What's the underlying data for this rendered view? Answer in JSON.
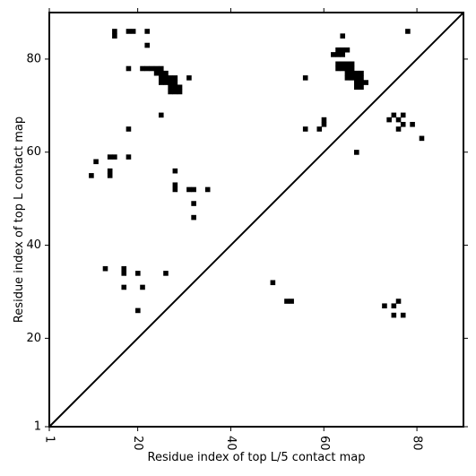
{
  "chart_data": {
    "type": "scatter",
    "xlabel": "Residue index of top L/5 contact map",
    "ylabel": "Residue index of top L contact map",
    "xlim": [
      1,
      90
    ],
    "ylim": [
      1,
      90
    ],
    "xticks": [
      1,
      20,
      40,
      60,
      80
    ],
    "yticks": [
      1,
      20,
      40,
      60,
      80
    ],
    "xtick_label_rotation": -90,
    "marker": "square",
    "marker_color": "#000000",
    "diagonal_line": true,
    "grid": false,
    "legend": "none",
    "series": [
      {
        "region": "upper-left (top L contacts)",
        "points": [
          [
            15,
            85
          ],
          [
            15,
            86
          ],
          [
            18,
            86
          ],
          [
            19,
            86
          ],
          [
            22,
            86
          ],
          [
            22,
            83
          ],
          [
            18,
            78
          ],
          [
            21,
            78
          ],
          [
            22,
            78
          ],
          [
            23,
            78
          ],
          [
            24,
            78
          ],
          [
            25,
            78
          ],
          [
            24,
            77
          ],
          [
            25,
            77
          ],
          [
            26,
            77
          ],
          [
            25,
            76
          ],
          [
            26,
            76
          ],
          [
            27,
            76
          ],
          [
            28,
            76
          ],
          [
            25,
            75
          ],
          [
            26,
            75
          ],
          [
            27,
            75
          ],
          [
            28,
            75
          ],
          [
            27,
            74
          ],
          [
            28,
            74
          ],
          [
            29,
            74
          ],
          [
            27,
            73
          ],
          [
            28,
            73
          ],
          [
            29,
            73
          ],
          [
            31,
            76
          ],
          [
            25,
            68
          ],
          [
            18,
            65
          ],
          [
            60,
            67
          ],
          [
            60,
            66
          ],
          [
            56,
            65
          ],
          [
            59,
            65
          ],
          [
            56,
            76
          ],
          [
            64,
            85
          ],
          [
            63,
            82
          ],
          [
            64,
            82
          ],
          [
            65,
            82
          ],
          [
            62,
            81
          ],
          [
            63,
            81
          ],
          [
            64,
            81
          ],
          [
            63,
            79
          ],
          [
            64,
            79
          ],
          [
            65,
            79
          ],
          [
            66,
            79
          ],
          [
            63,
            78
          ],
          [
            64,
            78
          ],
          [
            65,
            78
          ],
          [
            66,
            78
          ],
          [
            65,
            77
          ],
          [
            66,
            77
          ],
          [
            67,
            77
          ],
          [
            68,
            77
          ],
          [
            65,
            76
          ],
          [
            66,
            76
          ],
          [
            67,
            76
          ],
          [
            68,
            76
          ],
          [
            67,
            75
          ],
          [
            68,
            75
          ],
          [
            69,
            75
          ],
          [
            67,
            74
          ],
          [
            68,
            74
          ],
          [
            67,
            60
          ],
          [
            75,
            68
          ],
          [
            77,
            68
          ],
          [
            74,
            67
          ],
          [
            76,
            67
          ],
          [
            77,
            66
          ],
          [
            79,
            66
          ],
          [
            76,
            65
          ],
          [
            81,
            63
          ],
          [
            78,
            86
          ],
          [
            11,
            58
          ],
          [
            14,
            59
          ],
          [
            15,
            59
          ],
          [
            18,
            59
          ],
          [
            10,
            55
          ],
          [
            14,
            56
          ],
          [
            14,
            55
          ],
          [
            28,
            56
          ],
          [
            28,
            53
          ],
          [
            28,
            52
          ],
          [
            31,
            52
          ],
          [
            32,
            52
          ],
          [
            35,
            52
          ],
          [
            32,
            49
          ],
          [
            32,
            46
          ]
        ]
      },
      {
        "region": "lower-right (top L/5 contacts)",
        "points": [
          [
            13,
            35
          ],
          [
            17,
            35
          ],
          [
            17,
            34
          ],
          [
            20,
            34
          ],
          [
            26,
            34
          ],
          [
            17,
            31
          ],
          [
            21,
            31
          ],
          [
            20,
            26
          ],
          [
            49,
            32
          ],
          [
            52,
            28
          ],
          [
            53,
            28
          ],
          [
            73,
            27
          ],
          [
            75,
            27
          ],
          [
            76,
            28
          ],
          [
            75,
            25
          ],
          [
            77,
            25
          ]
        ]
      }
    ]
  }
}
